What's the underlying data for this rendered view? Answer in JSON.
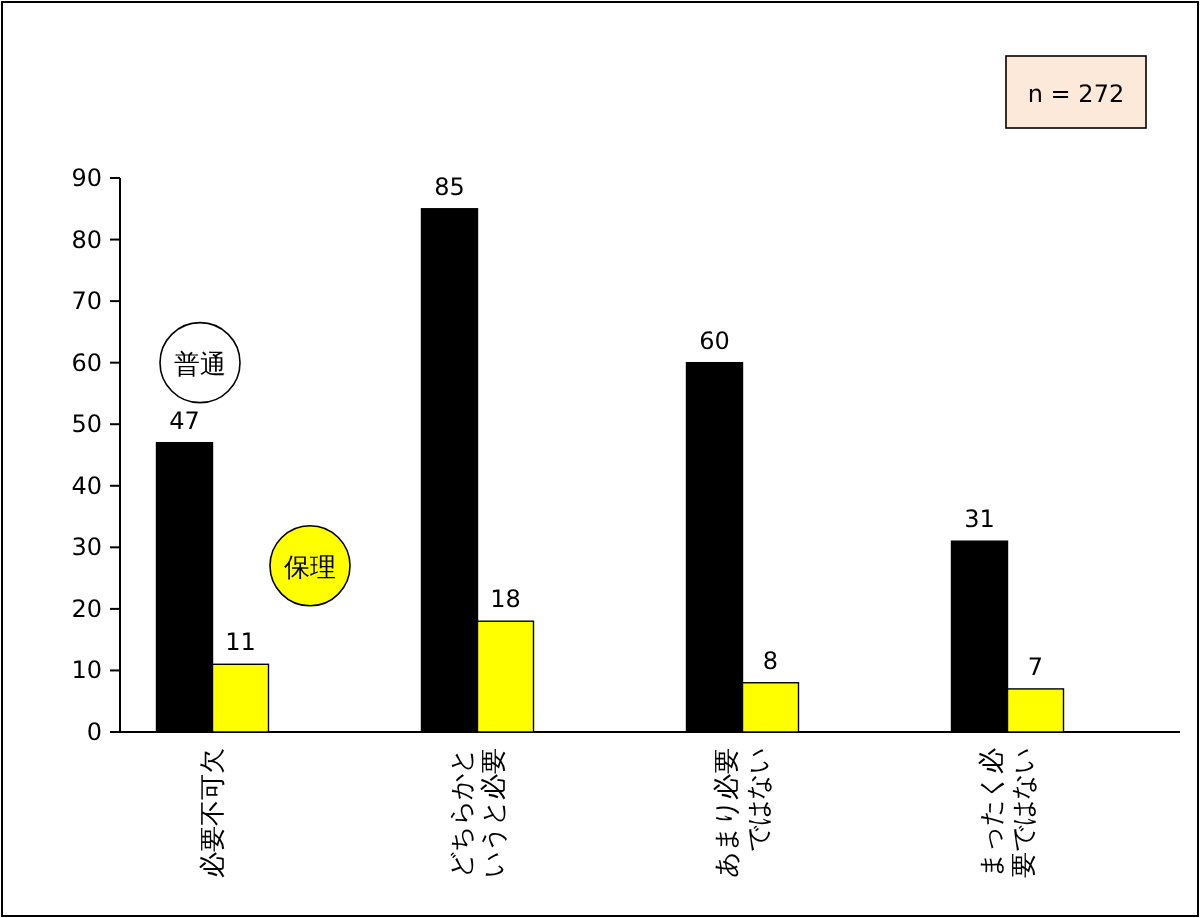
{
  "chart_data": {
    "type": "bar",
    "categories": [
      "必要不可欠",
      "どちらかというと必要",
      "あまり必要ではない",
      "まったく必要ではない"
    ],
    "series": [
      {
        "name": "普通",
        "color": "#000000",
        "values": [
          47,
          85,
          60,
          31
        ]
      },
      {
        "name": "保理",
        "color": "#ffff00",
        "values": [
          11,
          18,
          8,
          7
        ]
      }
    ],
    "ylim": [
      0,
      90
    ],
    "yticks": [
      0,
      10,
      20,
      30,
      40,
      50,
      60,
      70,
      80,
      90
    ],
    "data_labels": true,
    "legend": false,
    "grid": false,
    "annotations": [
      "n = 272"
    ]
  }
}
